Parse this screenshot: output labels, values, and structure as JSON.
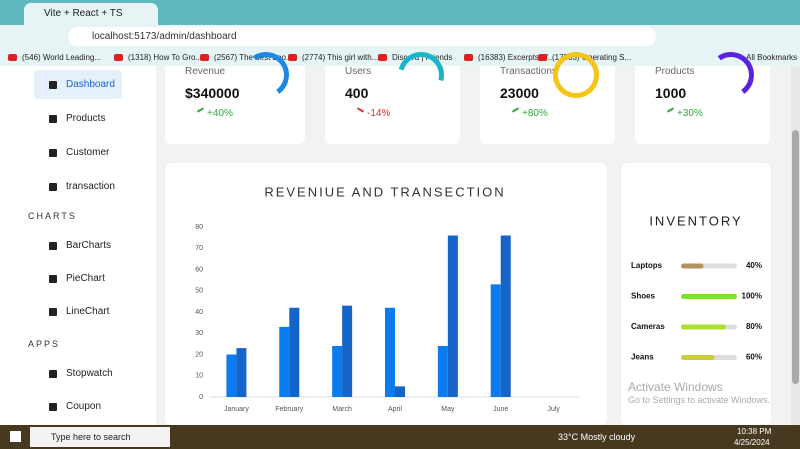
{
  "browser": {
    "tab_title": "Vite + React + TS",
    "url": "localhost:5173/admin/dashboard",
    "bookmarks": [
      "(546) World Leading...",
      "(1318) How To Gro...",
      "(2567) The best boo...",
      "(2774) This girl with...",
      "Discord | Friends",
      "(16383) Excerpts of...",
      "(17503) Operating S..."
    ],
    "all_bookmarks": "All Bookmarks"
  },
  "sidebar": {
    "items": [
      "Dashboard",
      "Products",
      "Customer",
      "transaction"
    ],
    "sections": [
      {
        "title": "CHARTS",
        "items": [
          "BarCharts",
          "PieChart",
          "LineChart"
        ]
      },
      {
        "title": "APPS",
        "items": [
          "Stopwatch",
          "Coupon"
        ]
      }
    ]
  },
  "stats": [
    {
      "title": "Revenue",
      "value": "$340000",
      "change": "+40%",
      "color": "#1e88e5"
    },
    {
      "title": "Users",
      "value": "400",
      "change": "-14%",
      "color": "#19b5c8"
    },
    {
      "title": "Transactions",
      "value": "23000",
      "change": "+80%",
      "color": "#f5c518"
    },
    {
      "title": "Products",
      "value": "1000",
      "change": "+30%",
      "color": "#5b21e0"
    }
  ],
  "chart_data": {
    "type": "bar",
    "title": "REVENIUE AND TRANSECTION",
    "categories": [
      "January",
      "February",
      "March",
      "April",
      "May",
      "June",
      "July"
    ],
    "series": [
      {
        "color": "#0a7cf0",
        "values": [
          20,
          33,
          24,
          42,
          24,
          53,
          null
        ]
      },
      {
        "color": "#1565c8",
        "values": [
          23,
          42,
          43,
          5,
          76,
          76,
          null
        ]
      }
    ],
    "ylim": [
      0,
      80
    ],
    "yticks": [
      0,
      10,
      20,
      30,
      40,
      50,
      60,
      70,
      80
    ],
    "grid": false
  },
  "inventory": {
    "title": "INVENTORY",
    "items": [
      {
        "name": "Laptops",
        "value": 40,
        "label": "40%",
        "color": "#b3915a"
      },
      {
        "name": "Shoes",
        "value": 100,
        "label": "100%",
        "color": "#7be32a"
      },
      {
        "name": "Cameras",
        "value": 80,
        "label": "80%",
        "color": "#a8e22c"
      },
      {
        "name": "Jeans",
        "value": 60,
        "label": "60%",
        "color": "#cccc38"
      }
    ]
  },
  "watermark": {
    "title": "Activate Windows",
    "subtitle": "Go to Settings to activate Windows."
  },
  "taskbar": {
    "search": "Type here to search",
    "weather": "33°C  Mostly cloudy",
    "time": "10:38 PM",
    "date": "4/25/2024"
  }
}
